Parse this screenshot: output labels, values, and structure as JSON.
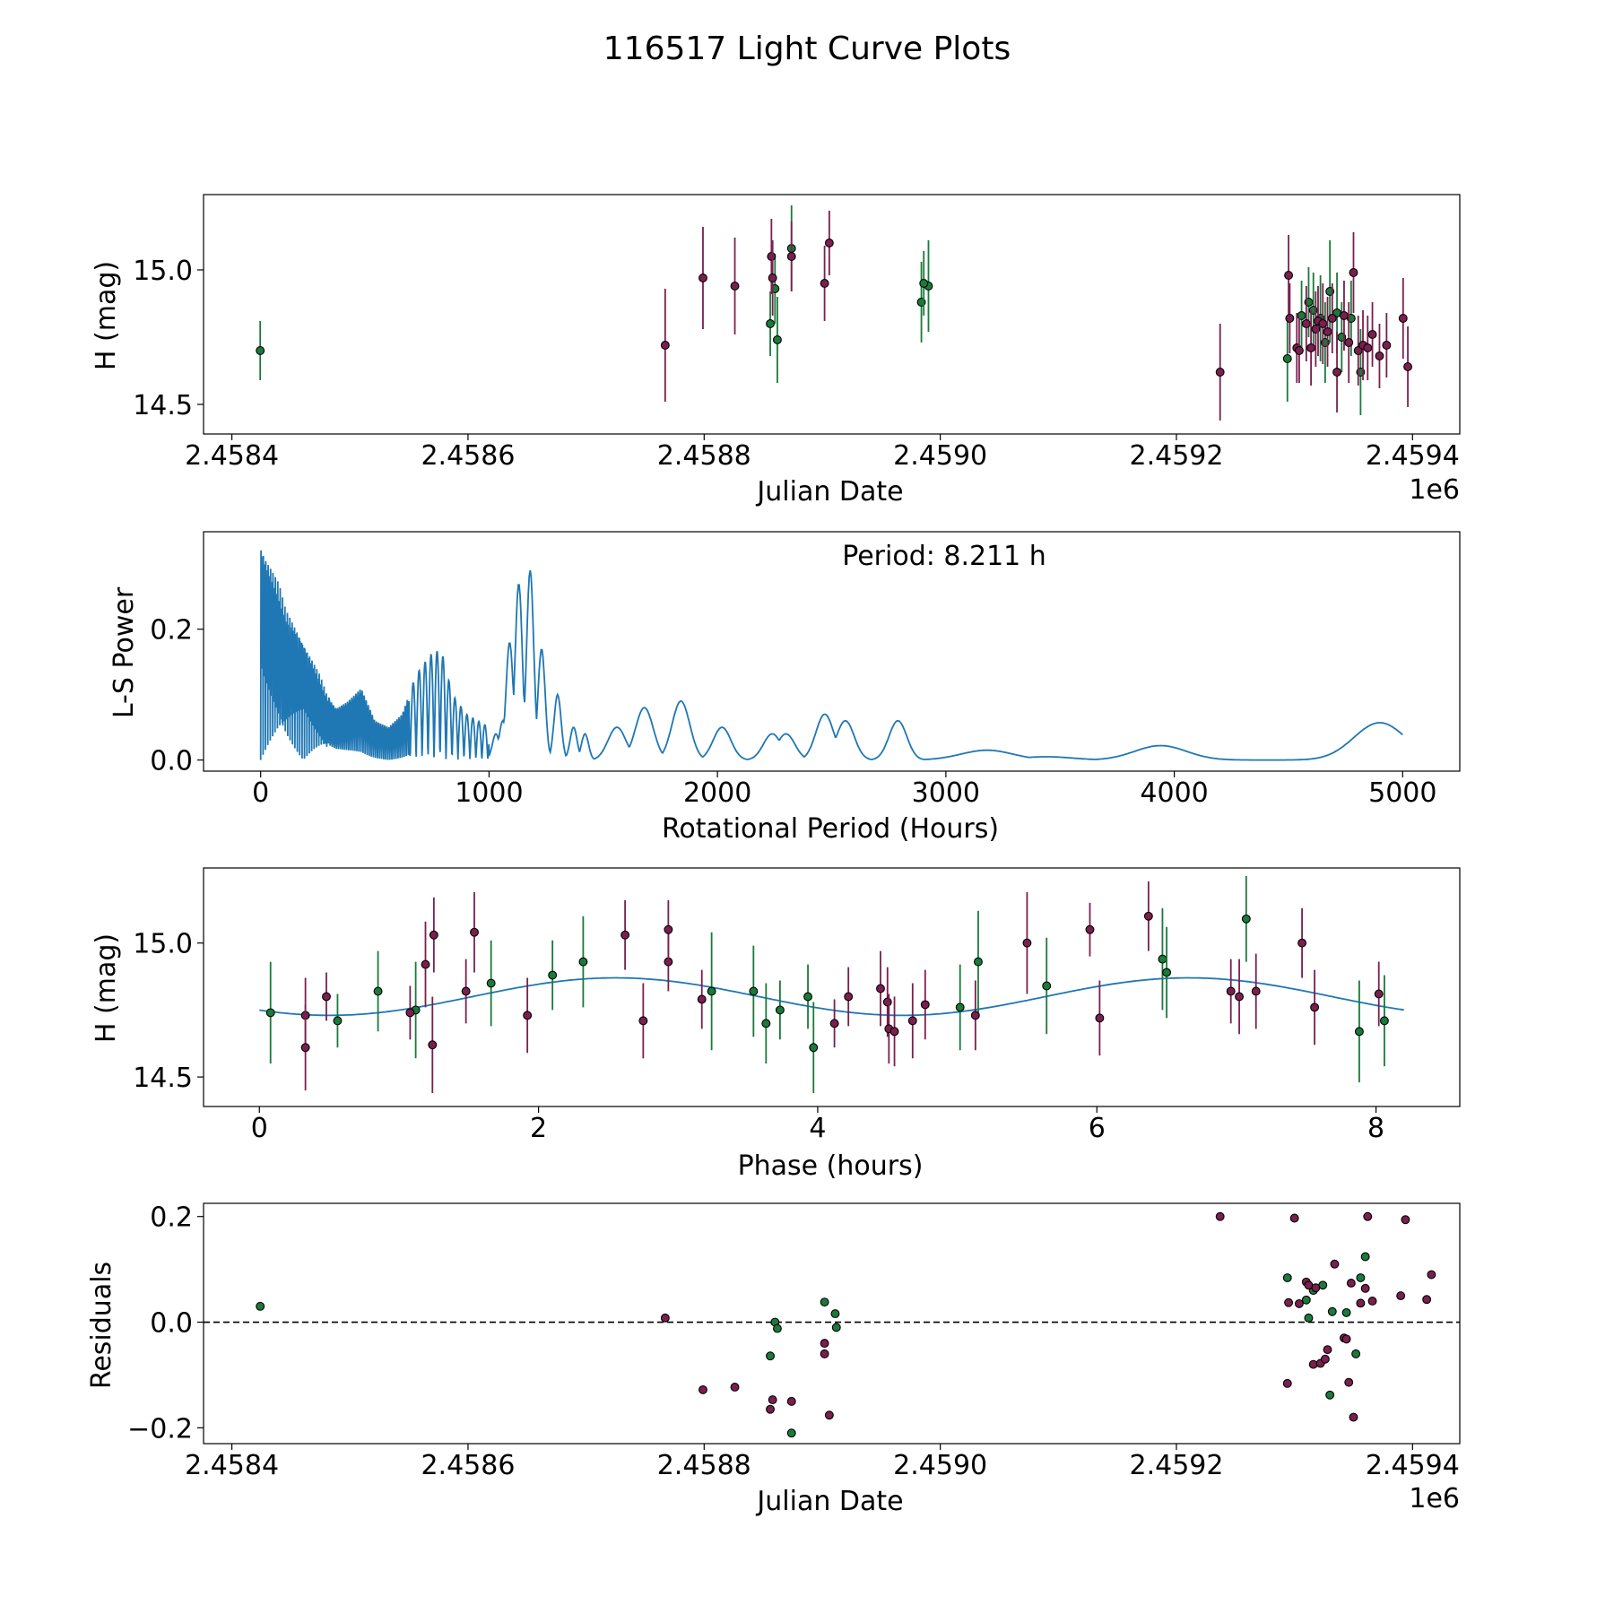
{
  "figure": {
    "title": "116517 Light Curve Plots"
  },
  "colors": {
    "green": "#1a7a3a",
    "purple": "#7a1f4f",
    "curve": "#1f77b4",
    "ink": "#000000"
  },
  "chart_data": [
    {
      "id": "lc",
      "type": "scatter",
      "xlabel": "Julian Date",
      "ylabel": "H (mag)",
      "x_offset_label": "1e6",
      "xlim": [
        2458376,
        2459440
      ],
      "ylim": [
        14.39,
        15.28
      ],
      "xticks": [
        2458400,
        2458600,
        2458800,
        2459000,
        2459200,
        2459400
      ],
      "xtick_labels": [
        "2.4584",
        "2.4586",
        "2.4588",
        "2.4590",
        "2.4592",
        "2.4594"
      ],
      "yticks": [
        14.5,
        15.0
      ],
      "ytick_labels": [
        "14.5",
        "15.0"
      ],
      "series": [
        {
          "name": "green",
          "color": "#1a7a3a",
          "points": [
            [
              2458424,
              14.7,
              0.11
            ],
            [
              2458856,
              14.8,
              0.12
            ],
            [
              2458860,
              14.93,
              0.13
            ],
            [
              2458862,
              14.74,
              0.16
            ],
            [
              2458874,
              15.08,
              0.16
            ],
            [
              2458984,
              14.88,
              0.15
            ],
            [
              2458990,
              14.94,
              0.17
            ],
            [
              2458986,
              14.95,
              0.12
            ],
            [
              2459294,
              14.67,
              0.16
            ],
            [
              2459306,
              14.83,
              0.13
            ],
            [
              2459312,
              14.88,
              0.13
            ],
            [
              2459316,
              14.85,
              0.14
            ],
            [
              2459322,
              14.82,
              0.16
            ],
            [
              2459326,
              14.73,
              0.15
            ],
            [
              2459330,
              14.92,
              0.19
            ],
            [
              2459340,
              14.75,
              0.13
            ],
            [
              2459348,
              14.82,
              0.14
            ],
            [
              2459356,
              14.62,
              0.16
            ],
            [
              2459336,
              14.84,
              0.15
            ]
          ]
        },
        {
          "name": "purple",
          "color": "#7a1f4f",
          "points": [
            [
              2458767,
              14.72,
              0.21
            ],
            [
              2458799,
              14.97,
              0.19
            ],
            [
              2458826,
              14.94,
              0.18
            ],
            [
              2458857,
              15.05,
              0.14
            ],
            [
              2458858,
              14.97,
              0.14
            ],
            [
              2458874,
              15.05,
              0.13
            ],
            [
              2458902,
              14.95,
              0.14
            ],
            [
              2458906,
              15.1,
              0.12
            ],
            [
              2459237,
              14.62,
              0.18
            ],
            [
              2459295,
              14.98,
              0.15
            ],
            [
              2459296,
              14.82,
              0.13
            ],
            [
              2459302,
              14.71,
              0.13
            ],
            [
              2459304,
              14.7,
              0.12
            ],
            [
              2459310,
              14.8,
              0.14
            ],
            [
              2459314,
              14.71,
              0.14
            ],
            [
              2459318,
              14.78,
              0.14
            ],
            [
              2459320,
              14.81,
              0.13
            ],
            [
              2459324,
              14.8,
              0.15
            ],
            [
              2459328,
              14.77,
              0.13
            ],
            [
              2459332,
              14.82,
              0.13
            ],
            [
              2459336,
              14.62,
              0.15
            ],
            [
              2459342,
              14.83,
              0.13
            ],
            [
              2459346,
              14.73,
              0.15
            ],
            [
              2459350,
              14.99,
              0.15
            ],
            [
              2459354,
              14.7,
              0.13
            ],
            [
              2459358,
              14.72,
              0.13
            ],
            [
              2459362,
              14.71,
              0.12
            ],
            [
              2459366,
              14.76,
              0.12
            ],
            [
              2459372,
              14.68,
              0.12
            ],
            [
              2459378,
              14.72,
              0.12
            ],
            [
              2459392,
              14.82,
              0.15
            ],
            [
              2459396,
              14.64,
              0.15
            ]
          ]
        }
      ]
    },
    {
      "id": "ls",
      "type": "line",
      "xlabel": "Rotational Period (Hours)",
      "ylabel": "L-S Power",
      "annotation": "Period: 8.211 h",
      "xlim": [
        -250,
        5250
      ],
      "ylim": [
        -0.017,
        0.349
      ],
      "xticks": [
        0,
        1000,
        2000,
        3000,
        4000,
        5000
      ],
      "xtick_labels": [
        "0",
        "1000",
        "2000",
        "3000",
        "4000",
        "5000"
      ],
      "yticks": [
        0.0,
        0.2
      ],
      "ytick_labels": [
        "0.0",
        "0.2"
      ],
      "envelope": [
        [
          0,
          0.33
        ],
        [
          20,
          0.31
        ],
        [
          50,
          0.29
        ],
        [
          80,
          0.27
        ],
        [
          110,
          0.23
        ],
        [
          140,
          0.21
        ],
        [
          170,
          0.19
        ],
        [
          200,
          0.17
        ],
        [
          230,
          0.15
        ],
        [
          260,
          0.13
        ],
        [
          290,
          0.1
        ],
        [
          330,
          0.08
        ],
        [
          380,
          0.09
        ],
        [
          440,
          0.11
        ],
        [
          500,
          0.06
        ],
        [
          560,
          0.05
        ],
        [
          620,
          0.07
        ],
        [
          680,
          0.13
        ],
        [
          740,
          0.16
        ],
        [
          790,
          0.17
        ],
        [
          840,
          0.1
        ],
        [
          900,
          0.07
        ],
        [
          950,
          0.06
        ],
        [
          1000,
          0.05
        ]
      ],
      "peaks": [
        [
          1030,
          0.04
        ],
        [
          1060,
          0.06
        ],
        [
          1090,
          0.18
        ],
        [
          1130,
          0.27
        ],
        [
          1180,
          0.29
        ],
        [
          1230,
          0.17
        ],
        [
          1300,
          0.1
        ],
        [
          1370,
          0.05
        ],
        [
          1420,
          0.04
        ],
        [
          1560,
          0.05
        ],
        [
          1680,
          0.08
        ],
        [
          1840,
          0.09
        ],
        [
          2020,
          0.05
        ],
        [
          2240,
          0.04
        ],
        [
          2300,
          0.04
        ],
        [
          2470,
          0.07
        ],
        [
          2560,
          0.06
        ],
        [
          2790,
          0.06
        ],
        [
          3180,
          0.015
        ],
        [
          3440,
          0.005
        ],
        [
          3940,
          0.022
        ],
        [
          4900,
          0.057
        ]
      ]
    },
    {
      "id": "phase",
      "type": "scatter",
      "xlabel": "Phase (hours)",
      "ylabel": "H (mag)",
      "xlim": [
        -0.4,
        8.6
      ],
      "ylim": [
        14.39,
        15.28
      ],
      "xticks": [
        0,
        2,
        4,
        6,
        8
      ],
      "xtick_labels": [
        "0",
        "2",
        "4",
        "6",
        "8"
      ],
      "yticks": [
        14.5,
        15.0
      ],
      "ytick_labels": [
        "14.5",
        "15.0"
      ],
      "model": {
        "mean": 14.8,
        "amplitude": 0.07,
        "period": 8.211,
        "phase_min": 0.5
      },
      "series": [
        {
          "name": "green",
          "color": "#1a7a3a",
          "points": [
            [
              0.08,
              14.74,
              0.19
            ],
            [
              0.56,
              14.71,
              0.1
            ],
            [
              0.85,
              14.82,
              0.15
            ],
            [
              1.12,
              14.75,
              0.18
            ],
            [
              1.66,
              14.85,
              0.16
            ],
            [
              2.1,
              14.88,
              0.13
            ],
            [
              2.32,
              14.93,
              0.17
            ],
            [
              3.24,
              14.82,
              0.22
            ],
            [
              3.54,
              14.82,
              0.17
            ],
            [
              3.63,
              14.7,
              0.15
            ],
            [
              3.73,
              14.75,
              0.11
            ],
            [
              3.93,
              14.8,
              0.12
            ],
            [
              3.97,
              14.61,
              0.17
            ],
            [
              5.02,
              14.76,
              0.16
            ],
            [
              5.15,
              14.93,
              0.19
            ],
            [
              5.64,
              14.84,
              0.18
            ],
            [
              6.47,
              14.94,
              0.19
            ],
            [
              6.5,
              14.89,
              0.17
            ],
            [
              7.07,
              15.09,
              0.16
            ],
            [
              7.88,
              14.67,
              0.19
            ],
            [
              8.06,
              14.71,
              0.17
            ]
          ]
        },
        {
          "name": "purple",
          "color": "#7a1f4f",
          "points": [
            [
              0.33,
              14.73,
              0.14
            ],
            [
              0.33,
              14.61,
              0.16
            ],
            [
              0.48,
              14.8,
              0.09
            ],
            [
              1.08,
              14.74,
              0.1
            ],
            [
              1.19,
              14.92,
              0.16
            ],
            [
              1.25,
              15.03,
              0.14
            ],
            [
              1.24,
              14.62,
              0.18
            ],
            [
              1.48,
              14.82,
              0.12
            ],
            [
              1.54,
              15.04,
              0.15
            ],
            [
              1.92,
              14.73,
              0.14
            ],
            [
              2.62,
              15.03,
              0.13
            ],
            [
              2.75,
              14.71,
              0.14
            ],
            [
              2.93,
              14.93,
              0.11
            ],
            [
              2.93,
              15.05,
              0.11
            ],
            [
              3.17,
              14.79,
              0.11
            ],
            [
              4.12,
              14.7,
              0.09
            ],
            [
              4.22,
              14.8,
              0.11
            ],
            [
              4.45,
              14.83,
              0.14
            ],
            [
              4.5,
              14.78,
              0.13
            ],
            [
              4.51,
              14.68,
              0.13
            ],
            [
              4.55,
              14.67,
              0.13
            ],
            [
              4.68,
              14.71,
              0.14
            ],
            [
              4.77,
              14.77,
              0.13
            ],
            [
              5.13,
              14.73,
              0.13
            ],
            [
              5.5,
              15.0,
              0.19
            ],
            [
              5.95,
              15.05,
              0.1
            ],
            [
              6.02,
              14.72,
              0.14
            ],
            [
              6.37,
              15.1,
              0.13
            ],
            [
              6.96,
              14.82,
              0.12
            ],
            [
              7.02,
              14.8,
              0.14
            ],
            [
              7.14,
              14.82,
              0.14
            ],
            [
              7.47,
              15.0,
              0.13
            ],
            [
              7.56,
              14.76,
              0.14
            ],
            [
              8.02,
              14.81,
              0.12
            ]
          ]
        }
      ]
    },
    {
      "id": "resid",
      "type": "scatter",
      "xlabel": "Julian Date",
      "ylabel": "Residuals",
      "x_offset_label": "1e6",
      "xlim": [
        2458376,
        2459440
      ],
      "ylim": [
        -0.23,
        0.225
      ],
      "xticks": [
        2458400,
        2458600,
        2458800,
        2459000,
        2459200,
        2459400
      ],
      "xtick_labels": [
        "2.4584",
        "2.4586",
        "2.4588",
        "2.4590",
        "2.4592",
        "2.4594"
      ],
      "yticks": [
        -0.2,
        0.0,
        0.2
      ],
      "ytick_labels": [
        "−0.2",
        "0.0",
        "0.2"
      ],
      "zero_line": 0.0,
      "series": [
        {
          "name": "green",
          "color": "#1a7a3a",
          "points": [
            [
              2458424,
              0.03
            ],
            [
              2458856,
              -0.064
            ],
            [
              2458860,
              0.0
            ],
            [
              2458862,
              -0.012
            ],
            [
              2458874,
              -0.21
            ],
            [
              2458902,
              0.038
            ],
            [
              2458911,
              0.016
            ],
            [
              2458912,
              -0.01
            ],
            [
              2459294,
              0.084
            ],
            [
              2459310,
              0.042
            ],
            [
              2459312,
              0.008
            ],
            [
              2459316,
              0.06
            ],
            [
              2459324,
              0.07
            ],
            [
              2459330,
              -0.138
            ],
            [
              2459332,
              0.02
            ],
            [
              2459344,
              0.018
            ],
            [
              2459352,
              -0.06
            ],
            [
              2459356,
              0.084
            ],
            [
              2459360,
              0.124
            ]
          ]
        },
        {
          "name": "purple",
          "color": "#7a1f4f",
          "points": [
            [
              2458767,
              0.008
            ],
            [
              2458799,
              -0.128
            ],
            [
              2458826,
              -0.123
            ],
            [
              2458856,
              -0.165
            ],
            [
              2458858,
              -0.147
            ],
            [
              2458874,
              -0.15
            ],
            [
              2458902,
              -0.06
            ],
            [
              2458902,
              -0.04
            ],
            [
              2458906,
              -0.176
            ],
            [
              2459237,
              0.2
            ],
            [
              2459294,
              -0.116
            ],
            [
              2459295,
              0.037
            ],
            [
              2459300,
              0.197
            ],
            [
              2459304,
              0.035
            ],
            [
              2459310,
              0.076
            ],
            [
              2459312,
              0.07
            ],
            [
              2459316,
              -0.08
            ],
            [
              2459318,
              0.065
            ],
            [
              2459322,
              -0.078
            ],
            [
              2459326,
              -0.07
            ],
            [
              2459328,
              -0.052
            ],
            [
              2459334,
              0.11
            ],
            [
              2459342,
              -0.03
            ],
            [
              2459344,
              -0.032
            ],
            [
              2459346,
              -0.114
            ],
            [
              2459348,
              0.074
            ],
            [
              2459350,
              -0.18
            ],
            [
              2459356,
              0.036
            ],
            [
              2459360,
              0.064
            ],
            [
              2459362,
              0.2
            ],
            [
              2459366,
              0.04
            ],
            [
              2459390,
              0.05
            ],
            [
              2459394,
              0.194
            ],
            [
              2459412,
              0.043
            ],
            [
              2459416,
              0.09
            ]
          ]
        }
      ]
    }
  ]
}
